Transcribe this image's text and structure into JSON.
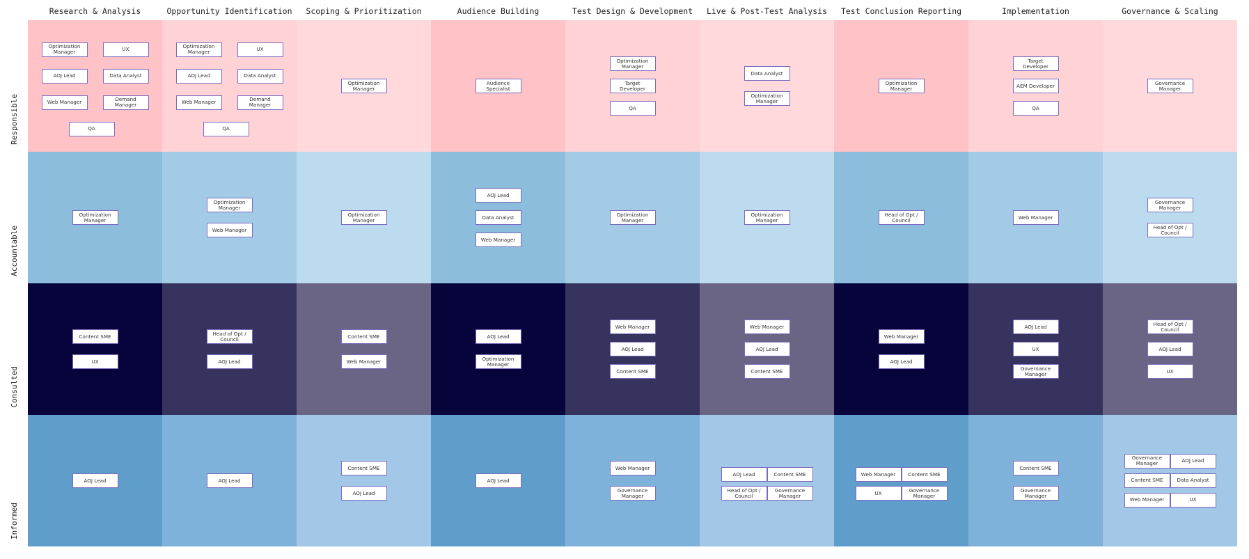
{
  "columns": [
    "Research & Analysis",
    "Opportunity Identification",
    "Scoping & Prioritization",
    "Audience Building",
    "Test Design & Development",
    "Live & Post-Test Analysis",
    "Test Conclusion Reporting",
    "Implementation",
    "Governance & Scaling"
  ],
  "rows": [
    "Responsible",
    "Accountable",
    "Consulted",
    "Informed"
  ],
  "colors": {
    "Responsible": [
      "#ffc2c6",
      "#ffd2d6",
      "#ffd9dc",
      "#ffc2c6",
      "#ffd2d6",
      "#ffd9dc",
      "#ffc2c6",
      "#ffd2d6",
      "#ffd9dc"
    ],
    "Accountable": [
      "#8dbddc",
      "#a3cbe5",
      "#bcdbee",
      "#8dbddc",
      "#a3cbe5",
      "#bcdbee",
      "#8dbddc",
      "#a3cbe5",
      "#bcdbee"
    ],
    "Consulted": [
      "#07043b",
      "#37335f",
      "#6a6585",
      "#07043b",
      "#37335f",
      "#6a6585",
      "#07043b",
      "#37335f",
      "#6a6585"
    ],
    "Informed": [
      "#5f9dcb",
      "#7fb2da",
      "#a3c7e6",
      "#5f9dcb",
      "#7fb2da",
      "#a3c7e6",
      "#5f9dcb",
      "#7fb2da",
      "#a3c7e6"
    ],
    "role_border": "#7b6bbf"
  },
  "cells": [
    {
      "Responsible": [
        "Optimization Manager",
        "UX",
        "AOJ Lead",
        "Data Analyst",
        "Web Manager",
        "Demand Manager",
        "QA"
      ],
      "Accountable": [
        "Optimization Manager"
      ],
      "Consulted": [
        "Content SME",
        "UX"
      ],
      "Informed": [
        "AOJ Lead"
      ]
    },
    {
      "Responsible": [
        "Optimization Manager",
        "UX",
        "AOJ Lead",
        "Data Analyst",
        "Web Manager",
        "Demand Manager",
        "QA"
      ],
      "Accountable": [
        "Optimization Manager",
        "Web Manager"
      ],
      "Consulted": [
        "Head of Opt / Council",
        "AOJ Lead"
      ],
      "Informed": [
        "AOJ Lead"
      ]
    },
    {
      "Responsible": [
        "Optimization Manager"
      ],
      "Accountable": [
        "Optimization Manager"
      ],
      "Consulted": [
        "Content SME",
        "Web Manager"
      ],
      "Informed": [
        "Content SME",
        "AOJ Lead"
      ]
    },
    {
      "Responsible": [
        "Audience Specialist"
      ],
      "Accountable": [
        "AOJ Lead",
        "Data Analyst",
        "Web Manager"
      ],
      "Consulted": [
        "AOJ Lead",
        "Optimization Manager"
      ],
      "Informed": [
        "AOJ Lead"
      ]
    },
    {
      "Responsible": [
        "Optimization Manager",
        "Target Developer",
        "QA"
      ],
      "Accountable": [
        "Optimization Manager"
      ],
      "Consulted": [
        "Web Manager",
        "AOJ Lead",
        "Content SME"
      ],
      "Informed": [
        "Web Manager",
        "Governance Manager"
      ]
    },
    {
      "Responsible": [
        "Data Analyst",
        "Optimization Manager"
      ],
      "Accountable": [
        "Optimization Manager"
      ],
      "Consulted": [
        "Web Manager",
        "AOJ Lead",
        "Content SME"
      ],
      "Informed": [
        "AOJ Lead",
        "Content SME",
        "Head of Opt / Council",
        "Governance Manager"
      ]
    },
    {
      "Responsible": [
        "Optimization Manager"
      ],
      "Accountable": [
        "Head of Opt / Council"
      ],
      "Consulted": [
        "Web Manager",
        "AOJ Lead"
      ],
      "Informed": [
        "Web Manager",
        "Content SME",
        "UX",
        "Governance Manager"
      ]
    },
    {
      "Responsible": [
        "Target Developer",
        "AEM Developer",
        "QA"
      ],
      "Accountable": [
        "Web Manager"
      ],
      "Consulted": [
        "AOJ Lead",
        "UX",
        "Governance Manager"
      ],
      "Informed": [
        "Content SME",
        "Governance Manager"
      ]
    },
    {
      "Responsible": [
        "Governance Manager"
      ],
      "Accountable": [
        "Governance Manager",
        "Head of Opt / Council"
      ],
      "Consulted": [
        "Head of Opt / Council",
        "AOJ Lead",
        "UX"
      ],
      "Informed": [
        "Governance Manager",
        "AOJ Lead",
        "Content SME",
        "Data Analyst",
        "Web Manager",
        "UX"
      ]
    }
  ]
}
